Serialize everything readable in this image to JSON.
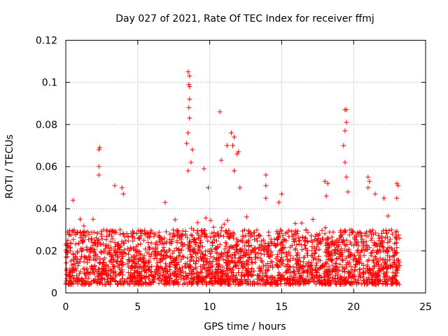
{
  "colors": {
    "series": "#ff0000",
    "grid": "#a0a0a0",
    "frame": "#000000"
  },
  "chart_data": {
    "type": "scatter",
    "title": "Day 027 of 2021, Rate Of TEC Index for receiver ffmj",
    "xlabel": "GPS time / hours",
    "ylabel": "ROTI / TECUs",
    "xlim": [
      0,
      25
    ],
    "ylim": [
      0,
      0.12
    ],
    "xticks": [
      0,
      5,
      10,
      15,
      20,
      25
    ],
    "xtick_labels": [
      "0",
      "5",
      "10",
      "15",
      "20",
      "25"
    ],
    "yticks": [
      0,
      0.02,
      0.04,
      0.06,
      0.08,
      0.1,
      0.12
    ],
    "ytick_labels": [
      "0",
      "0.02",
      "0.04",
      "0.06",
      "0.08",
      "0.1",
      "0.12"
    ],
    "grid": true,
    "marker": "plus",
    "series": [
      {
        "name": "ROTI",
        "x_range": [
          0,
          23.2
        ],
        "baseline_band": [
          0.004,
          0.03
        ],
        "notable_points": [
          {
            "x": 0.5,
            "y": 0.044
          },
          {
            "x": 1.0,
            "y": 0.035
          },
          {
            "x": 2.3,
            "y": 0.068
          },
          {
            "x": 2.35,
            "y": 0.069
          },
          {
            "x": 2.3,
            "y": 0.06
          },
          {
            "x": 2.3,
            "y": 0.056
          },
          {
            "x": 3.4,
            "y": 0.051
          },
          {
            "x": 3.9,
            "y": 0.05
          },
          {
            "x": 4.0,
            "y": 0.047
          },
          {
            "x": 6.9,
            "y": 0.043
          },
          {
            "x": 8.5,
            "y": 0.105
          },
          {
            "x": 8.6,
            "y": 0.103
          },
          {
            "x": 8.55,
            "y": 0.099
          },
          {
            "x": 8.6,
            "y": 0.098
          },
          {
            "x": 8.6,
            "y": 0.092
          },
          {
            "x": 8.55,
            "y": 0.088
          },
          {
            "x": 8.6,
            "y": 0.083
          },
          {
            "x": 8.5,
            "y": 0.076
          },
          {
            "x": 8.4,
            "y": 0.071
          },
          {
            "x": 8.8,
            "y": 0.068
          },
          {
            "x": 8.7,
            "y": 0.062
          },
          {
            "x": 8.5,
            "y": 0.058
          },
          {
            "x": 9.6,
            "y": 0.059
          },
          {
            "x": 9.9,
            "y": 0.05
          },
          {
            "x": 10.7,
            "y": 0.086
          },
          {
            "x": 11.5,
            "y": 0.076
          },
          {
            "x": 11.7,
            "y": 0.074
          },
          {
            "x": 11.6,
            "y": 0.07
          },
          {
            "x": 11.2,
            "y": 0.07
          },
          {
            "x": 12.0,
            "y": 0.067
          },
          {
            "x": 11.9,
            "y": 0.066
          },
          {
            "x": 10.8,
            "y": 0.063
          },
          {
            "x": 11.7,
            "y": 0.058
          },
          {
            "x": 12.1,
            "y": 0.05
          },
          {
            "x": 13.9,
            "y": 0.056
          },
          {
            "x": 13.9,
            "y": 0.051
          },
          {
            "x": 13.9,
            "y": 0.045
          },
          {
            "x": 15.0,
            "y": 0.047
          },
          {
            "x": 14.8,
            "y": 0.043
          },
          {
            "x": 18.0,
            "y": 0.053
          },
          {
            "x": 18.2,
            "y": 0.052
          },
          {
            "x": 18.1,
            "y": 0.046
          },
          {
            "x": 19.4,
            "y": 0.087
          },
          {
            "x": 19.5,
            "y": 0.087
          },
          {
            "x": 19.5,
            "y": 0.081
          },
          {
            "x": 19.4,
            "y": 0.077
          },
          {
            "x": 19.3,
            "y": 0.07
          },
          {
            "x": 19.4,
            "y": 0.062
          },
          {
            "x": 19.5,
            "y": 0.055
          },
          {
            "x": 19.6,
            "y": 0.048
          },
          {
            "x": 21.0,
            "y": 0.055
          },
          {
            "x": 21.1,
            "y": 0.053
          },
          {
            "x": 21.0,
            "y": 0.05
          },
          {
            "x": 21.5,
            "y": 0.047
          },
          {
            "x": 22.1,
            "y": 0.045
          },
          {
            "x": 23.0,
            "y": 0.052
          },
          {
            "x": 23.1,
            "y": 0.051
          },
          {
            "x": 23.0,
            "y": 0.045
          }
        ]
      }
    ]
  }
}
